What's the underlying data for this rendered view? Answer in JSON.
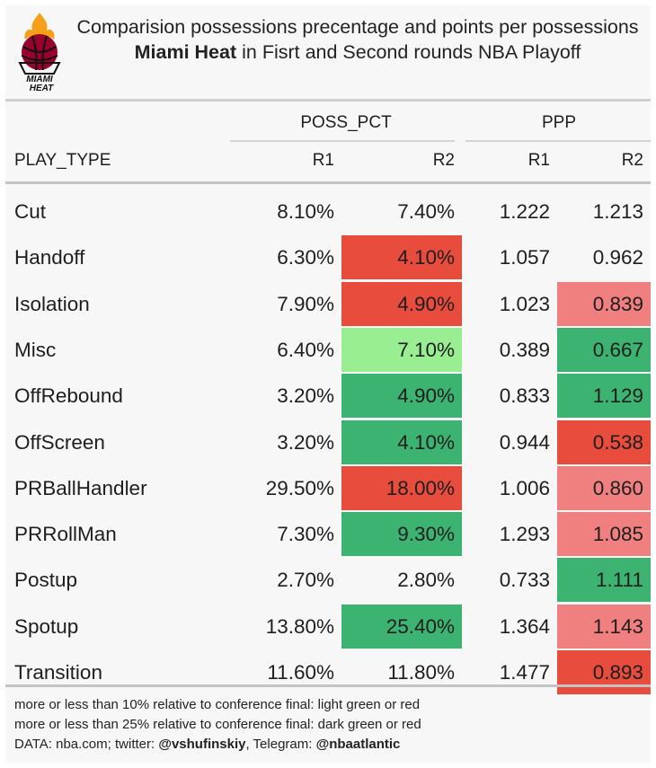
{
  "colors": {
    "dark_red": "#e74c3c",
    "light_red": "#f08080",
    "dark_green": "#3cb371",
    "light_green": "#98ee90",
    "heat_red": "#98002e",
    "heat_black": "#111111"
  },
  "logo": {
    "text_line1": "MIAMI",
    "text_line2": "HEAT"
  },
  "header": {
    "title": "Comparision possessions precentage and points per possessions",
    "subtitle_bold": "Miami Heat",
    "subtitle_rest": "in Fisrt and Second rounds NBA Playoff"
  },
  "chart_data": {
    "type": "table",
    "column_groups": [
      "POSS_PCT",
      "PPP"
    ],
    "columns": [
      "PLAY_TYPE",
      "R1",
      "R2",
      "R1",
      "R2"
    ],
    "rows": [
      {
        "play_type": "Cut",
        "poss_r1": "8.10%",
        "poss_r2": "7.40%",
        "poss_r2_flag": "none",
        "ppp_r1": "1.222",
        "ppp_r2": "1.213",
        "ppp_r2_flag": "none"
      },
      {
        "play_type": "Handoff",
        "poss_r1": "6.30%",
        "poss_r2": "4.10%",
        "poss_r2_flag": "dark_red",
        "ppp_r1": "1.057",
        "ppp_r2": "0.962",
        "ppp_r2_flag": "none"
      },
      {
        "play_type": "Isolation",
        "poss_r1": "7.90%",
        "poss_r2": "4.90%",
        "poss_r2_flag": "dark_red",
        "ppp_r1": "1.023",
        "ppp_r2": "0.839",
        "ppp_r2_flag": "light_red"
      },
      {
        "play_type": "Misc",
        "poss_r1": "6.40%",
        "poss_r2": "7.10%",
        "poss_r2_flag": "light_green",
        "ppp_r1": "0.389",
        "ppp_r2": "0.667",
        "ppp_r2_flag": "dark_green"
      },
      {
        "play_type": "OffRebound",
        "poss_r1": "3.20%",
        "poss_r2": "4.90%",
        "poss_r2_flag": "dark_green",
        "ppp_r1": "0.833",
        "ppp_r2": "1.129",
        "ppp_r2_flag": "dark_green"
      },
      {
        "play_type": "OffScreen",
        "poss_r1": "3.20%",
        "poss_r2": "4.10%",
        "poss_r2_flag": "dark_green",
        "ppp_r1": "0.944",
        "ppp_r2": "0.538",
        "ppp_r2_flag": "dark_red"
      },
      {
        "play_type": "PRBallHandler",
        "poss_r1": "29.50%",
        "poss_r2": "18.00%",
        "poss_r2_flag": "dark_red",
        "ppp_r1": "1.006",
        "ppp_r2": "0.860",
        "ppp_r2_flag": "light_red"
      },
      {
        "play_type": "PRRollMan",
        "poss_r1": "7.30%",
        "poss_r2": "9.30%",
        "poss_r2_flag": "dark_green",
        "ppp_r1": "1.293",
        "ppp_r2": "1.085",
        "ppp_r2_flag": "light_red"
      },
      {
        "play_type": "Postup",
        "poss_r1": "2.70%",
        "poss_r2": "2.80%",
        "poss_r2_flag": "none",
        "ppp_r1": "0.733",
        "ppp_r2": "1.111",
        "ppp_r2_flag": "dark_green"
      },
      {
        "play_type": "Spotup",
        "poss_r1": "13.80%",
        "poss_r2": "25.40%",
        "poss_r2_flag": "dark_green",
        "ppp_r1": "1.364",
        "ppp_r2": "1.143",
        "ppp_r2_flag": "light_red"
      },
      {
        "play_type": "Transition",
        "poss_r1": "11.60%",
        "poss_r2": "11.80%",
        "poss_r2_flag": "none",
        "ppp_r1": "1.477",
        "ppp_r2": "0.893",
        "ppp_r2_flag": "dark_red"
      }
    ]
  },
  "footer": {
    "note1": "more or less than 10% relative to conference final: light green or red",
    "note2": "more or less than 25% relative to conference final: dark green or red",
    "source_prefix": "DATA: nba.com; twitter: ",
    "twitter": "@vshufinskiy",
    "telegram_prefix": ", Telegram: ",
    "telegram": "@nbaatlantic"
  }
}
